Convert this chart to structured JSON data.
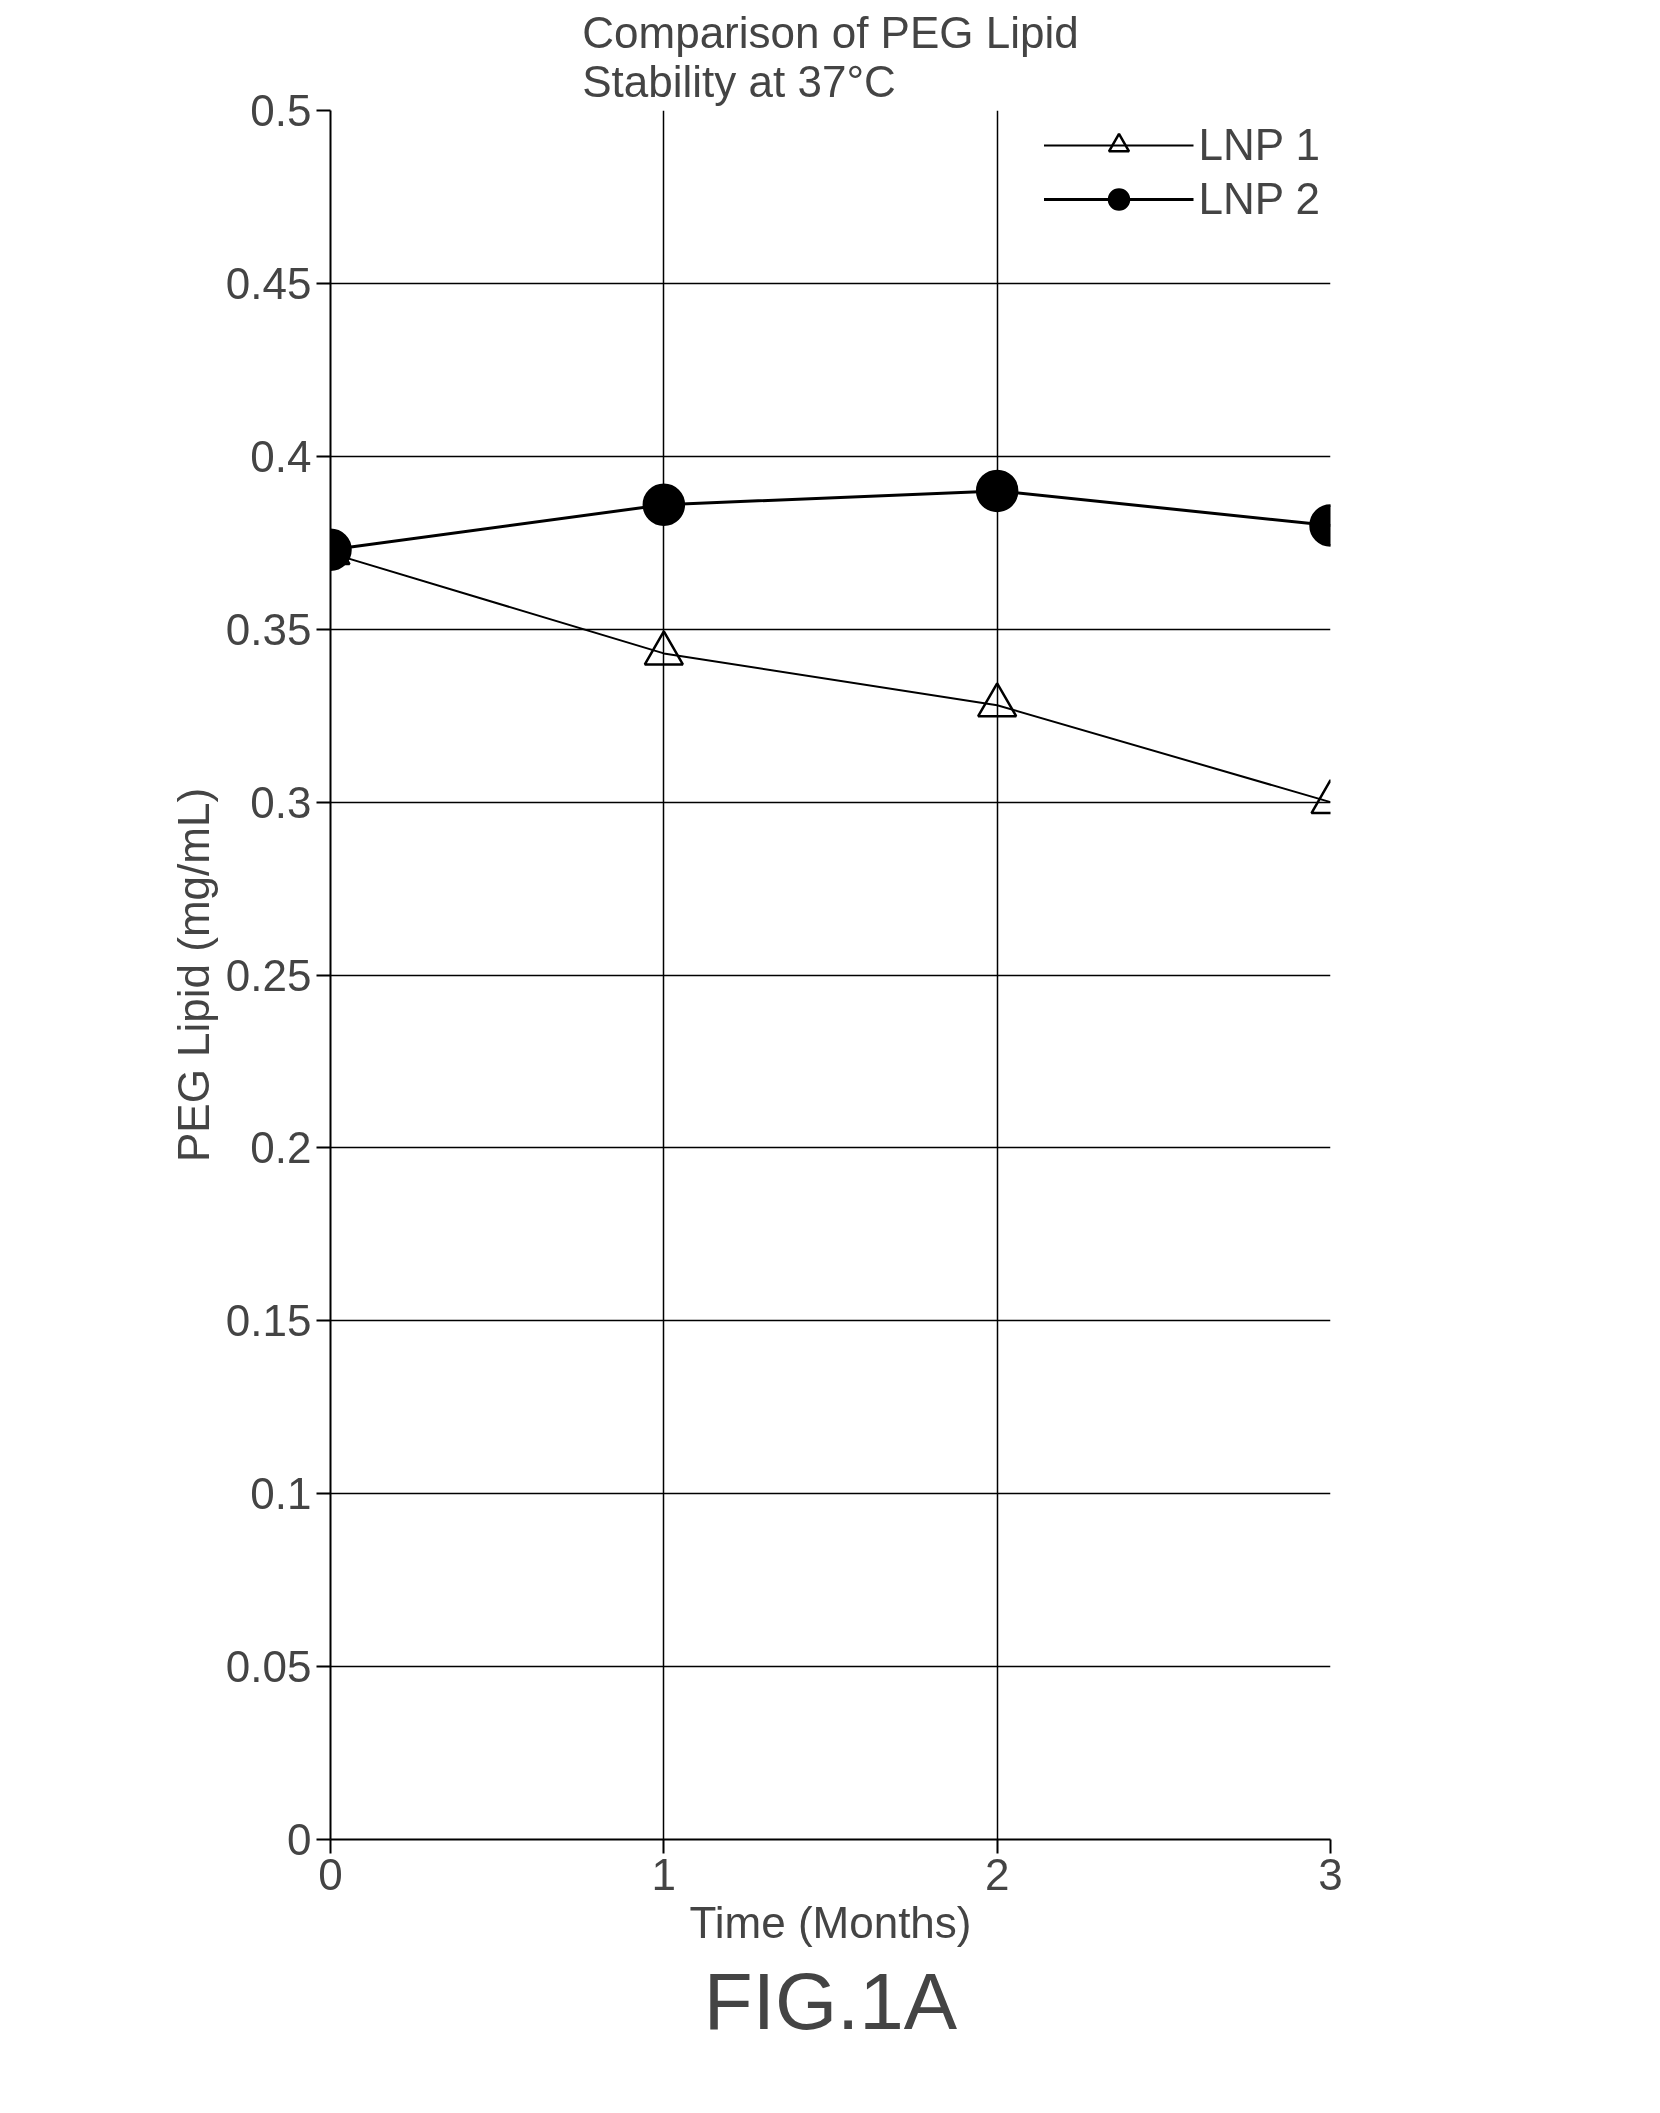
{
  "chart_data": {
    "type": "line",
    "title": "Comparison of PEG Lipid\nStability at 37°C",
    "xlabel": "Time (Months)",
    "ylabel": "PEG Lipid (mg/mL)",
    "x": [
      0,
      1,
      2,
      3
    ],
    "series": [
      {
        "name": "LNP 1",
        "color": "#000000",
        "marker": "triangle",
        "values": [
          0.372,
          0.343,
          0.328,
          0.3
        ]
      },
      {
        "name": "LNP 2",
        "color": "#000000",
        "marker": "circle",
        "values": [
          0.373,
          0.386,
          0.39,
          0.38
        ]
      }
    ],
    "xlim": [
      0,
      3
    ],
    "xticks": [
      0,
      1,
      2,
      3
    ],
    "ylim": [
      0,
      0.5
    ],
    "yticks": [
      0,
      0.05,
      0.1,
      0.15,
      0.2,
      0.25,
      0.3,
      0.35,
      0.4,
      0.45,
      0.5
    ],
    "grid": true,
    "legend": "top right",
    "annotations": [
      "FIG.1A"
    ]
  }
}
